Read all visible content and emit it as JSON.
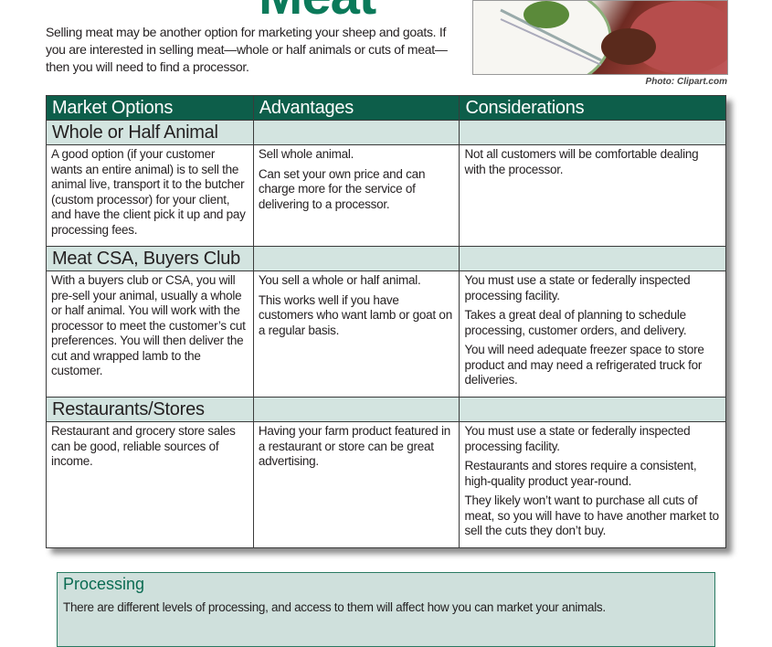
{
  "title": "Meat",
  "intro": "Selling meat may be another option for marketing your sheep and goats. If you are interested in selling meat—whole or half animals or cuts of meat—then you will need to find a processor.",
  "photo_caption": "Photo: Clipart.com",
  "table": {
    "headers": [
      "Market Options",
      "Advantages",
      "Considerations"
    ],
    "sections": [
      {
        "name": "Whole or Half Animal",
        "option": [
          "A good option (if your customer wants an entire animal) is to sell the animal live, transport it to the butcher (custom processor) for your client, and have the client pick it up and pay processing fees."
        ],
        "advantages": [
          "Sell whole animal.",
          "Can set your own price and can charge more for the service of delivering to a processor."
        ],
        "considerations": [
          "Not all customers will be comfortable dealing with the processor."
        ]
      },
      {
        "name": "Meat CSA, Buyers Club",
        "option": [
          "With a buyers club or CSA, you will pre-sell your animal, usually a whole or half animal. You will work with the processor to meet the customer’s cut preferences. You will then deliver the cut and wrapped lamb to the customer."
        ],
        "advantages": [
          "You sell a whole or half animal.",
          "This works well if you have customers who want lamb or goat on a regular basis."
        ],
        "considerations": [
          "You must use a state or federally inspected processing facility.",
          "Takes a great deal of planning to schedule processing, customer orders, and delivery.",
          "You will need adequate freezer space to store product and may need a refrigerated truck for deliveries."
        ]
      },
      {
        "name": "Restaurants/Stores",
        "option": [
          "Restaurant and grocery store sales can be good, reliable sources of income."
        ],
        "advantages": [
          "Having your farm product featured in a restaurant or store can be great advertising."
        ],
        "considerations": [
          "You must use a state or federally inspected processing facility.",
          "Restaurants and stores require a consistent, high-quality product year-round.",
          "They likely won’t want to purchase all cuts of meat, so you will have to have another market to sell the cuts they don’t buy."
        ]
      }
    ]
  },
  "processing": {
    "title": "Processing",
    "text": "There are different levels of processing, and access to them will affect how you can market your animals."
  }
}
